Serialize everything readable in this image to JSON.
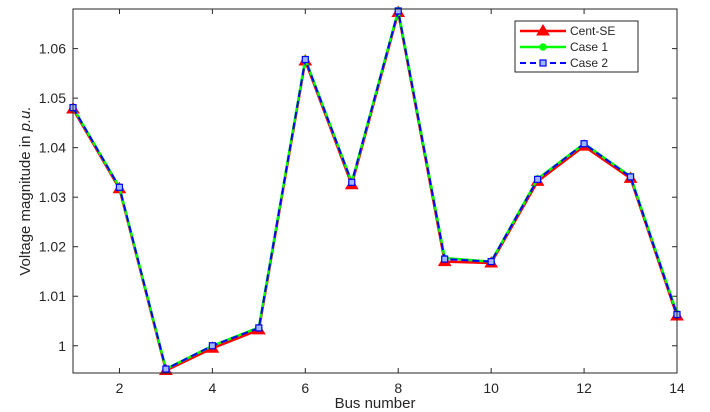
{
  "chart_data": {
    "type": "line",
    "xlabel": "Bus number",
    "ylabel_prefix": "Voltage magnitude in ",
    "ylabel_unit": "p.u.",
    "xlim": [
      1,
      14
    ],
    "ylim": [
      0.9945,
      1.068
    ],
    "x_ticks": [
      2,
      4,
      6,
      8,
      10,
      12,
      14
    ],
    "y_ticks": [
      1,
      1.01,
      1.02,
      1.03,
      1.04,
      1.05,
      1.06
    ],
    "x_tick_labels": [
      "2",
      "4",
      "6",
      "8",
      "10",
      "12",
      "14"
    ],
    "y_tick_labels": [
      "1",
      "1.01",
      "1.02",
      "1.03",
      "1.04",
      "1.05",
      "1.06"
    ],
    "grid": false,
    "legend_position": "top-right",
    "x": [
      1,
      2,
      3,
      4,
      5,
      6,
      7,
      8,
      9,
      10,
      11,
      12,
      13,
      14
    ],
    "series": [
      {
        "name": "Cent-SE",
        "color": "#ff0000",
        "line_style": "solid",
        "marker": "triangle",
        "values": [
          1.0478,
          1.0317,
          0.995,
          0.9995,
          1.0032,
          1.0575,
          1.0325,
          1.0673,
          1.017,
          1.0167,
          1.0332,
          1.0403,
          1.0338,
          1.006
        ]
      },
      {
        "name": "Case 1",
        "color": "#00ff00",
        "line_style": "solid",
        "marker": "circle",
        "values": [
          1.0481,
          1.032,
          0.9953,
          1.0,
          1.0037,
          1.0579,
          1.033,
          1.0677,
          1.0177,
          1.017,
          1.0337,
          1.0408,
          1.0342,
          1.0065
        ]
      },
      {
        "name": "Case 2",
        "color": "#0000ff",
        "line_style": "dashed",
        "marker": "square",
        "values": [
          1.0481,
          1.032,
          0.9953,
          1.0,
          1.0036,
          1.0578,
          1.033,
          1.0676,
          1.0175,
          1.017,
          1.0336,
          1.0408,
          1.0341,
          1.0063
        ]
      }
    ]
  }
}
